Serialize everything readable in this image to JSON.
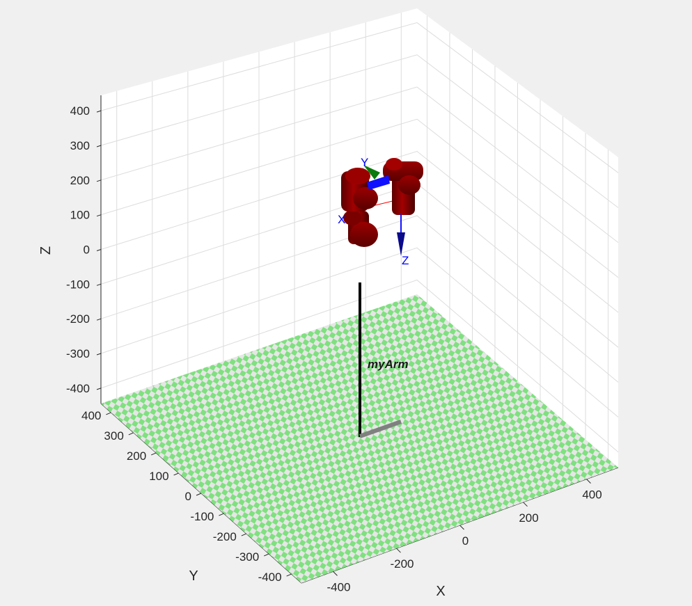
{
  "axes": {
    "xlabel": "X",
    "ylabel": "Y",
    "zlabel": "Z",
    "x_ticks": [
      "-400",
      "-200",
      "0",
      "200",
      "400"
    ],
    "y_ticks": [
      "400",
      "300",
      "200",
      "100",
      "0",
      "-100",
      "-200",
      "-300",
      "-400"
    ],
    "z_ticks": [
      "400",
      "300",
      "200",
      "100",
      "0",
      "-100",
      "-200",
      "-300",
      "-400"
    ],
    "grid": true,
    "background": "#ffffff"
  },
  "floor": {
    "colors": [
      "#7fe07f",
      "#e6e6e6"
    ]
  },
  "robot": {
    "name": "myArm",
    "link_color": "#8b0000",
    "base_color": "#000000"
  },
  "frame_labels": {
    "x": "X",
    "y": "Y",
    "z": "Z"
  },
  "frame_colors": {
    "x": "#ff0000",
    "y": "#008000",
    "z": "#0000ff"
  }
}
